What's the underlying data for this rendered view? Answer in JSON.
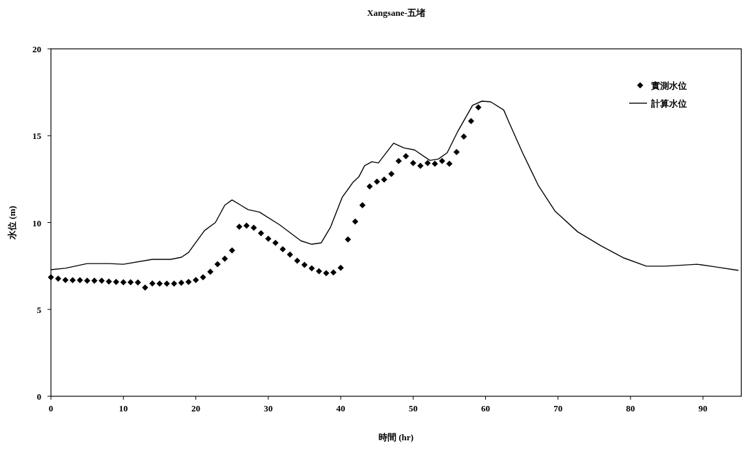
{
  "chart_data": {
    "type": "line",
    "title": "Xangsane-五堵",
    "xlabel": "時間 (hr)",
    "ylabel": "水位 (m)",
    "xlim": [
      0,
      95.3
    ],
    "ylim": [
      0,
      20
    ],
    "xticks": [
      0,
      10,
      20,
      30,
      40,
      50,
      60,
      70,
      80,
      90
    ],
    "yticks": [
      0,
      5,
      10,
      15,
      20
    ],
    "legend": "top right",
    "series": [
      {
        "name": "實測水位",
        "type": "scatter",
        "marker": "diamond",
        "color": "#000000",
        "x": [
          0,
          1,
          2,
          3,
          4,
          5,
          6,
          7,
          8,
          9,
          10,
          11,
          12,
          13,
          14,
          15,
          16,
          17,
          18,
          19,
          20,
          21,
          22,
          23,
          24,
          25,
          26,
          27,
          28,
          29,
          30,
          31,
          32,
          33,
          34,
          35,
          36,
          37,
          38,
          39,
          40,
          41,
          42,
          43,
          44,
          45,
          46,
          47,
          48,
          49,
          50,
          51,
          52,
          53,
          54,
          55,
          56,
          57,
          58,
          59
        ],
        "values": [
          6.85,
          6.77,
          6.69,
          6.68,
          6.68,
          6.65,
          6.65,
          6.65,
          6.6,
          6.58,
          6.56,
          6.56,
          6.55,
          6.26,
          6.5,
          6.49,
          6.49,
          6.49,
          6.53,
          6.58,
          6.69,
          6.85,
          7.17,
          7.6,
          7.92,
          8.4,
          9.76,
          9.82,
          9.7,
          9.39,
          9.07,
          8.83,
          8.47,
          8.16,
          7.8,
          7.56,
          7.37,
          7.2,
          7.09,
          7.13,
          7.4,
          9.03,
          10.06,
          11.0,
          12.08,
          12.36,
          12.48,
          12.8,
          13.54,
          13.82,
          13.43,
          13.27,
          13.43,
          13.39,
          13.54,
          13.39,
          14.06,
          14.95,
          15.84,
          16.63
        ]
      },
      {
        "name": "計算水位",
        "type": "line",
        "marker": "none",
        "color": "#000000",
        "x": [
          0,
          2,
          5,
          8,
          10,
          14,
          16.5,
          18,
          19,
          21.2,
          22.7,
          24,
          25,
          26.2,
          27.2,
          28.8,
          31.6,
          34.5,
          36,
          37.3,
          38.6,
          40.2,
          41.7,
          42.5,
          43.3,
          44.3,
          45.2,
          47.3,
          48.7,
          50.2,
          52.3,
          53.5,
          54.7,
          56.1,
          58.2,
          59.5,
          60.7,
          62.5,
          63.2,
          65.1,
          67.3,
          69.6,
          72.7,
          75.9,
          79.1,
          82.2,
          84.8,
          89.2,
          91.7,
          94.9
        ],
        "values": [
          7.29,
          7.37,
          7.64,
          7.64,
          7.6,
          7.88,
          7.88,
          8.0,
          8.28,
          9.54,
          10.0,
          11.0,
          11.3,
          11.0,
          10.75,
          10.6,
          9.86,
          8.95,
          8.75,
          8.83,
          9.74,
          11.45,
          12.32,
          12.63,
          13.27,
          13.5,
          13.43,
          14.57,
          14.3,
          14.18,
          13.58,
          13.66,
          14.02,
          15.2,
          16.75,
          16.99,
          16.95,
          16.48,
          15.8,
          14.02,
          12.12,
          10.65,
          9.47,
          8.67,
          7.96,
          7.49,
          7.49,
          7.6,
          7.45,
          7.25
        ]
      }
    ]
  }
}
